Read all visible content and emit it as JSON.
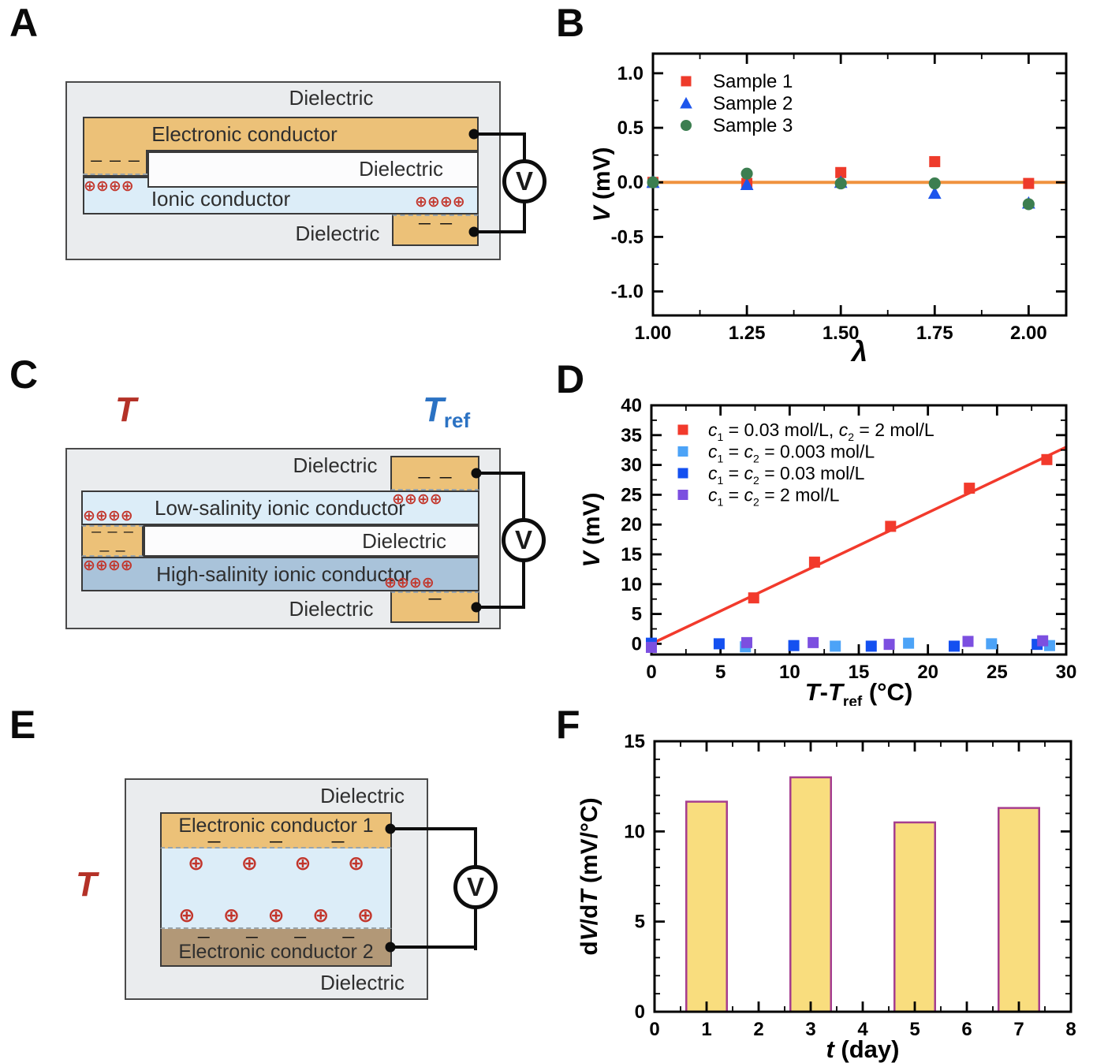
{
  "panels": {
    "A": {
      "letter": "A",
      "dielectric_top": "Dielectric",
      "electronic_conductor": "Electronic conductor",
      "dielectric_mid": "Dielectric",
      "ionic_conductor": "Ionic conductor",
      "dielectric_bottom": "Dielectric",
      "minus_electrode_top": "— — —",
      "plus_ions_left": "⊕⊕⊕⊕",
      "plus_ions_right": "⊕⊕⊕⊕",
      "minus_electrode_bottom": "— —",
      "voltmeter": "V"
    },
    "B": {
      "letter": "B"
    },
    "C": {
      "letter": "C",
      "temperature": "T",
      "temperature_ref": "T",
      "temperature_ref_sub": "ref",
      "dielectric_top": "Dielectric",
      "minus_top_electrode": "— —",
      "plus_low_right": "⊕⊕⊕⊕",
      "low_salinity": "Low-salinity ionic conductor",
      "plus_low_left": "⊕⊕⊕⊕",
      "minus_left_row1": "— — —",
      "minus_left_row2": "— —",
      "dielectric_mid": "Dielectric",
      "plus_high_left": "⊕⊕⊕⊕",
      "high_salinity": "High-salinity ionic conductor",
      "plus_high_right": "⊕⊕⊕⊕",
      "minus_bottom_electrode": "—",
      "dielectric_bottom": "Dielectric",
      "voltmeter": "V"
    },
    "D": {
      "letter": "D"
    },
    "E": {
      "letter": "E",
      "temperature": "T",
      "dielectric_top": "Dielectric",
      "conductor1": "Electronic conductor 1",
      "minus_row_top": "— — —",
      "plus_row1": "⊕ ⊕ ⊕ ⊕",
      "plus_row2": "⊕ ⊕ ⊕ ⊕ ⊕",
      "minus_row_bottom": "— — — —",
      "conductor2": "Electronic conductor 2",
      "dielectric_bottom": "Dielectric",
      "voltmeter": "V"
    },
    "F": {
      "letter": "F"
    }
  },
  "chart_data": [
    {
      "id": "B",
      "type": "scatter",
      "xlabel_segments": [
        {
          "text": "λ",
          "italic": true
        }
      ],
      "ylabel_segments": [
        {
          "text": "V",
          "italic": true
        },
        {
          "text": " (mV)"
        }
      ],
      "xlim": [
        1.0,
        2.1
      ],
      "ylim": [
        -1.22,
        1.18
      ],
      "xticks": [
        1.0,
        1.25,
        1.5,
        1.75,
        2.0
      ],
      "xtick_labels": [
        "1.00",
        "1.25",
        "1.50",
        "1.75",
        "2.00"
      ],
      "x_minor": 0.125,
      "yticks": [
        -1.0,
        -0.5,
        0.0,
        0.5,
        1.0
      ],
      "ytick_labels": [
        "-1.0",
        "-0.5",
        "0.0",
        "0.5",
        "1.0"
      ],
      "y_minor": 0.25,
      "hline": {
        "y": 0,
        "color": "#F0923F",
        "width": 4
      },
      "series": [
        {
          "name_segments": [
            {
              "text": "Sample 1"
            }
          ],
          "marker": "square",
          "color": "#EE3B2B",
          "points": [
            [
              1.0,
              0.0
            ],
            [
              1.25,
              -0.01
            ],
            [
              1.5,
              0.09
            ],
            [
              1.75,
              0.19
            ],
            [
              2.0,
              -0.01
            ]
          ]
        },
        {
          "name_segments": [
            {
              "text": "Sample 2"
            }
          ],
          "marker": "triangle",
          "color": "#1D55EC",
          "points": [
            [
              1.0,
              0.0
            ],
            [
              1.25,
              -0.02
            ],
            [
              1.5,
              0.0
            ],
            [
              1.75,
              -0.1
            ],
            [
              2.0,
              -0.19
            ]
          ]
        },
        {
          "name_segments": [
            {
              "text": "Sample 3"
            }
          ],
          "marker": "circle",
          "color": "#3C7E50",
          "points": [
            [
              1.0,
              0.0
            ],
            [
              1.25,
              0.08
            ],
            [
              1.5,
              -0.01
            ],
            [
              1.75,
              -0.01
            ],
            [
              2.0,
              -0.2
            ]
          ]
        }
      ]
    },
    {
      "id": "D",
      "type": "scatter",
      "xlabel_segments": [
        {
          "text": "T",
          "italic": true
        },
        {
          "text": "-"
        },
        {
          "text": "T",
          "italic": true
        },
        {
          "text": "ref",
          "sub": true
        },
        {
          "text": " (°C)"
        }
      ],
      "ylabel_segments": [
        {
          "text": "V",
          "italic": true
        },
        {
          "text": " (mV)"
        }
      ],
      "xlim": [
        0,
        30
      ],
      "ylim": [
        -1.8,
        40
      ],
      "xticks": [
        0,
        5,
        10,
        15,
        20,
        25,
        30
      ],
      "xtick_labels": [
        "0",
        "5",
        "10",
        "15",
        "20",
        "25",
        "30"
      ],
      "x_minor": 2.5,
      "yticks": [
        0,
        5,
        10,
        15,
        20,
        25,
        30,
        35,
        40
      ],
      "ytick_labels": [
        "0",
        "5",
        "10",
        "15",
        "20",
        "25",
        "30",
        "35",
        "40"
      ],
      "y_minor": 2.5,
      "fit_line": {
        "x1": 0,
        "y1": 0,
        "x2": 30,
        "y2": 33,
        "color": "#F23A2C",
        "width": 3.5
      },
      "series": [
        {
          "name_segments": [
            {
              "text": "c",
              "italic": true
            },
            {
              "text": "1",
              "sub": true
            },
            {
              "text": " = 0.03 mol/L, "
            },
            {
              "text": "c",
              "italic": true
            },
            {
              "text": "2",
              "sub": true
            },
            {
              "text": " = 2 mol/L"
            }
          ],
          "marker": "square",
          "color": "#F23A2C",
          "points": [
            [
              0,
              0
            ],
            [
              7.4,
              7.7
            ],
            [
              11.8,
              13.7
            ],
            [
              17.3,
              19.7
            ],
            [
              23,
              26.1
            ],
            [
              28.6,
              30.9
            ]
          ]
        },
        {
          "name_segments": [
            {
              "text": "c",
              "italic": true
            },
            {
              "text": "1",
              "sub": true
            },
            {
              "text": " = "
            },
            {
              "text": "c",
              "italic": true
            },
            {
              "text": "2",
              "sub": true
            },
            {
              "text": " = 0.003 mol/L"
            }
          ],
          "marker": "square",
          "color": "#4CA3F7",
          "points": [
            [
              0,
              -0.2
            ],
            [
              6.8,
              -0.5
            ],
            [
              13.3,
              -0.4
            ],
            [
              18.6,
              0.1
            ],
            [
              24.6,
              0.0
            ],
            [
              28.8,
              -0.3
            ]
          ]
        },
        {
          "name_segments": [
            {
              "text": "c",
              "italic": true
            },
            {
              "text": "1",
              "sub": true
            },
            {
              "text": " = "
            },
            {
              "text": "c",
              "italic": true
            },
            {
              "text": "2",
              "sub": true
            },
            {
              "text": " = 0.03 mol/L"
            }
          ],
          "marker": "square",
          "color": "#1450F0",
          "points": [
            [
              0,
              0.1
            ],
            [
              4.9,
              0.0
            ],
            [
              10.3,
              -0.3
            ],
            [
              15.9,
              -0.4
            ],
            [
              21.9,
              -0.4
            ],
            [
              27.9,
              -0.1
            ]
          ]
        },
        {
          "name_segments": [
            {
              "text": "c",
              "italic": true
            },
            {
              "text": "1",
              "sub": true
            },
            {
              "text": " = "
            },
            {
              "text": "c",
              "italic": true
            },
            {
              "text": "2",
              "sub": true
            },
            {
              "text": " = 2 mol/L"
            }
          ],
          "marker": "square",
          "color": "#7C4FE0",
          "points": [
            [
              0,
              -0.6
            ],
            [
              6.9,
              0.2
            ],
            [
              11.7,
              0.2
            ],
            [
              17.2,
              -0.1
            ],
            [
              22.9,
              0.4
            ],
            [
              28.3,
              0.5
            ]
          ]
        }
      ]
    },
    {
      "id": "F",
      "type": "bar",
      "xlabel_segments": [
        {
          "text": "t",
          "italic": true
        },
        {
          "text": " (day)"
        }
      ],
      "ylabel_segments": [
        {
          "text": "d"
        },
        {
          "text": "V",
          "italic": true
        },
        {
          "text": "/d"
        },
        {
          "text": "T",
          "italic": true
        },
        {
          "text": " (mV/°C)"
        }
      ],
      "xlim": [
        0,
        8
      ],
      "ylim": [
        0,
        15
      ],
      "xticks": [
        0,
        1,
        2,
        3,
        4,
        5,
        6,
        7,
        8
      ],
      "xtick_labels": [
        "0",
        "1",
        "2",
        "3",
        "4",
        "5",
        "6",
        "7",
        "8"
      ],
      "x_minor": 0.5,
      "yticks": [
        0,
        5,
        10,
        15
      ],
      "ytick_labels": [
        "0",
        "5",
        "10",
        "15"
      ],
      "y_minor": 1,
      "bars": {
        "x": [
          1,
          3,
          5,
          7
        ],
        "values": [
          11.65,
          13.0,
          10.5,
          11.3
        ],
        "width": 0.78,
        "fill": "#F9DD7E",
        "outline": "#A63D8F"
      }
    }
  ]
}
